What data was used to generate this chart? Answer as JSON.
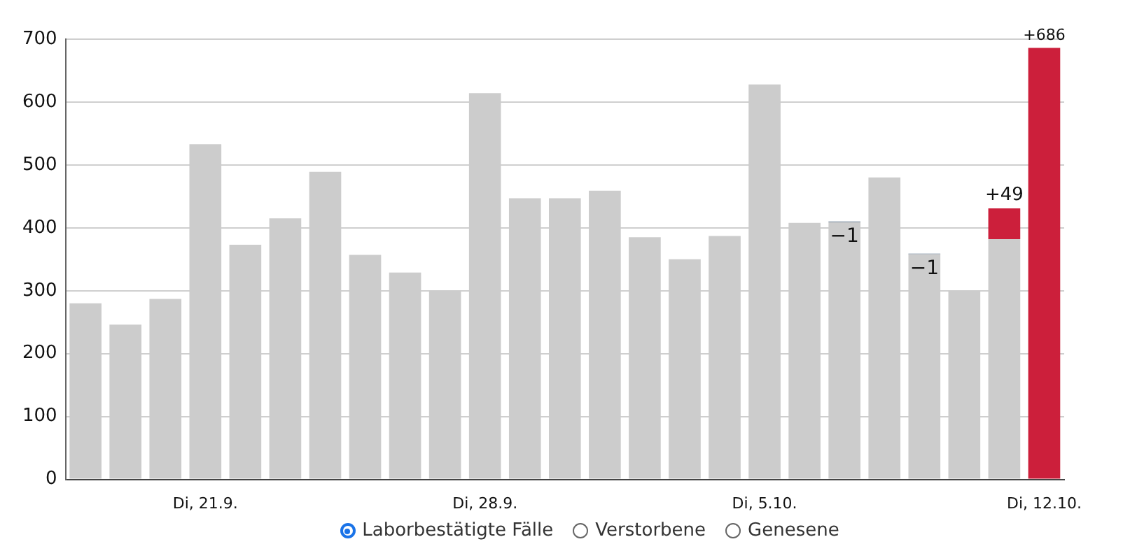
{
  "chart_data": {
    "type": "bar",
    "categories": [
      null,
      null,
      null,
      "Di, 21.9.",
      null,
      null,
      null,
      null,
      null,
      null,
      "Di, 28.9.",
      null,
      null,
      null,
      null,
      null,
      null,
      "Di, 5.10.",
      null,
      null,
      null,
      null,
      null,
      null,
      "Di, 12.10."
    ],
    "series": [
      {
        "color": "#cccccc",
        "values": [
          280,
          246,
          287,
          533,
          373,
          415,
          489,
          357,
          329,
          300,
          614,
          447,
          447,
          459,
          385,
          350,
          387,
          628,
          408,
          409,
          480,
          358,
          300,
          382,
          null
        ]
      },
      {
        "color": "#5a7089",
        "base": [
          null,
          null,
          null,
          null,
          null,
          null,
          null,
          null,
          null,
          null,
          null,
          null,
          null,
          null,
          null,
          null,
          null,
          null,
          null,
          410,
          null,
          359,
          null,
          null,
          null
        ],
        "values": [
          null,
          null,
          null,
          null,
          null,
          null,
          null,
          null,
          null,
          null,
          null,
          null,
          null,
          null,
          null,
          null,
          null,
          null,
          null,
          -1,
          null,
          -1,
          null,
          null,
          null
        ],
        "value_labels": [
          null,
          null,
          null,
          null,
          null,
          null,
          null,
          null,
          null,
          null,
          null,
          null,
          null,
          null,
          null,
          null,
          null,
          null,
          null,
          "−1",
          null,
          "−1",
          null,
          null,
          null
        ]
      },
      {
        "color": "#cc1f3b",
        "base": [
          null,
          null,
          null,
          null,
          null,
          null,
          null,
          null,
          null,
          null,
          null,
          null,
          null,
          null,
          null,
          null,
          null,
          null,
          null,
          null,
          null,
          null,
          null,
          382,
          0
        ],
        "values": [
          null,
          null,
          null,
          null,
          null,
          null,
          null,
          null,
          null,
          null,
          null,
          null,
          null,
          null,
          null,
          null,
          null,
          null,
          null,
          null,
          null,
          null,
          null,
          49,
          686
        ],
        "value_labels": [
          null,
          null,
          null,
          null,
          null,
          null,
          null,
          null,
          null,
          null,
          null,
          null,
          null,
          null,
          null,
          null,
          null,
          null,
          null,
          null,
          null,
          null,
          null,
          "+49",
          "+686"
        ]
      }
    ],
    "ylim": [
      0,
      700
    ],
    "yticks": [
      0,
      100,
      200,
      300,
      400,
      500,
      600,
      700
    ],
    "grid": "y",
    "legend": false,
    "annotations": [
      "Laborbestätigte Fälle",
      "Verstorbene",
      "Genesene"
    ]
  }
}
